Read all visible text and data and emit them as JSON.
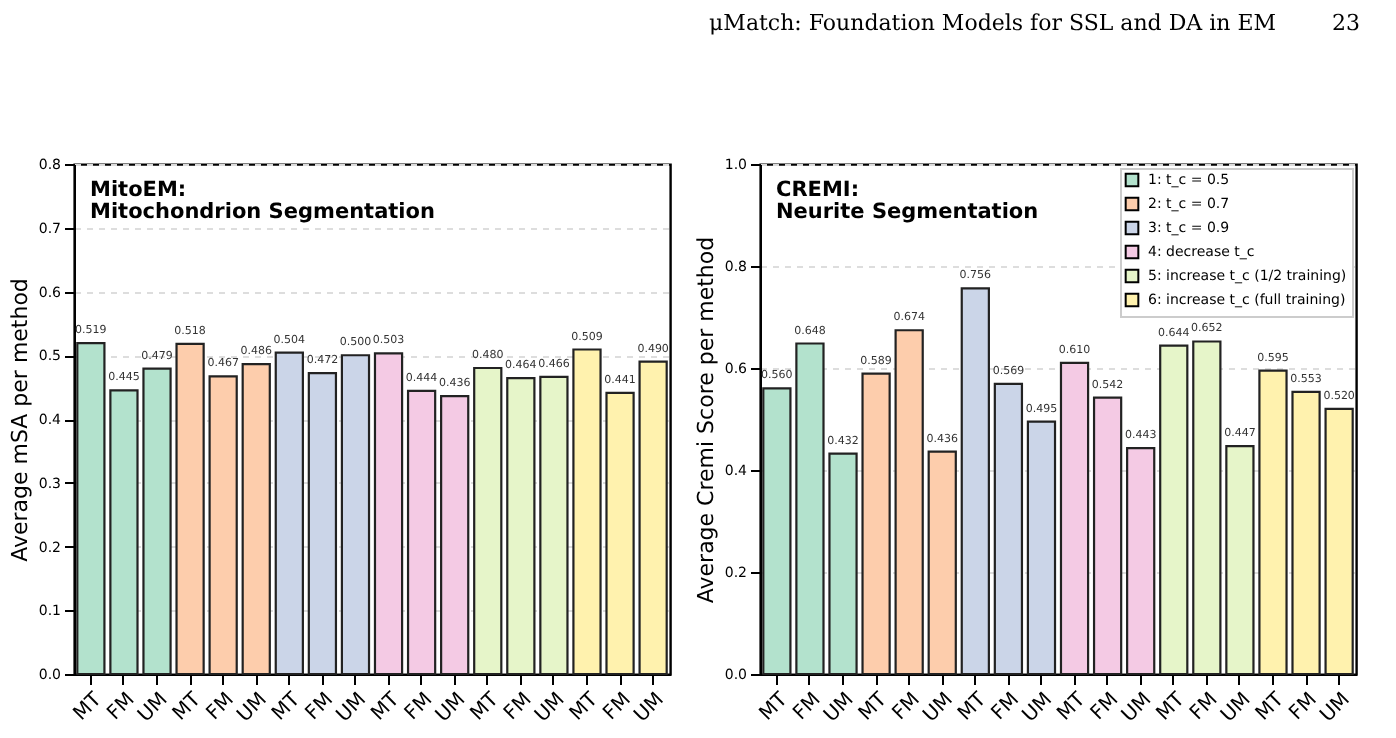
{
  "chart_data": [
    {
      "type": "bar",
      "title": "MitoEM:\nMitochondrion Segmentation",
      "ylabel": "Average mSA per method",
      "categories": [
        "MT",
        "FM",
        "UM",
        "MT",
        "FM",
        "UM",
        "MT",
        "FM",
        "UM",
        "MT",
        "FM",
        "UM",
        "MT",
        "FM",
        "UM",
        "MT",
        "FM",
        "UM"
      ],
      "series": [
        {
          "color": "#b3e2cd",
          "values": [
            0.519,
            0.445,
            0.479,
            null,
            null,
            null,
            null,
            null,
            null,
            null,
            null,
            null,
            null,
            null,
            null,
            null,
            null,
            null
          ],
          "value_labels": [
            "0.519",
            "0.445",
            "0.479",
            null,
            null,
            null,
            null,
            null,
            null,
            null,
            null,
            null,
            null,
            null,
            null,
            null,
            null,
            null
          ]
        },
        {
          "color": "#fdcdac",
          "values": [
            null,
            null,
            null,
            0.518,
            0.467,
            0.486,
            null,
            null,
            null,
            null,
            null,
            null,
            null,
            null,
            null,
            null,
            null,
            null
          ],
          "value_labels": [
            null,
            null,
            null,
            "0.518",
            "0.467",
            "0.486",
            null,
            null,
            null,
            null,
            null,
            null,
            null,
            null,
            null,
            null,
            null,
            null
          ]
        },
        {
          "color": "#cbd5e8",
          "values": [
            null,
            null,
            null,
            null,
            null,
            null,
            0.504,
            0.472,
            0.5,
            null,
            null,
            null,
            null,
            null,
            null,
            null,
            null,
            null
          ],
          "value_labels": [
            null,
            null,
            null,
            null,
            null,
            null,
            "0.504",
            "0.472",
            "0.500",
            null,
            null,
            null,
            null,
            null,
            null,
            null,
            null,
            null
          ]
        },
        {
          "color": "#f4cae4",
          "values": [
            null,
            null,
            null,
            null,
            null,
            null,
            null,
            null,
            null,
            0.503,
            0.444,
            0.436,
            null,
            null,
            null,
            null,
            null,
            null
          ],
          "value_labels": [
            null,
            null,
            null,
            null,
            null,
            null,
            null,
            null,
            null,
            "0.503",
            "0.444",
            "0.436",
            null,
            null,
            null,
            null,
            null,
            null
          ]
        },
        {
          "color": "#e6f5c9",
          "values": [
            null,
            null,
            null,
            null,
            null,
            null,
            null,
            null,
            null,
            null,
            null,
            null,
            0.48,
            0.464,
            0.466,
            null,
            null,
            null
          ],
          "value_labels": [
            null,
            null,
            null,
            null,
            null,
            null,
            null,
            null,
            null,
            null,
            null,
            null,
            "0.480",
            "0.464",
            "0.466",
            null,
            null,
            null
          ]
        },
        {
          "color": "#fff2ae",
          "values": [
            null,
            null,
            null,
            null,
            null,
            null,
            null,
            null,
            null,
            null,
            null,
            null,
            null,
            null,
            null,
            0.509,
            0.441,
            0.49
          ],
          "value_labels": [
            null,
            null,
            null,
            null,
            null,
            null,
            null,
            null,
            null,
            null,
            null,
            null,
            null,
            null,
            null,
            "0.509",
            "0.441",
            "0.490"
          ]
        }
      ],
      "ylim": [
        0,
        0.8
      ],
      "yticks": [
        {
          "value": 0,
          "label": "0.0"
        },
        0.1,
        0.2,
        0.3,
        0.4,
        0.5,
        0.6,
        0.7,
        0.8
      ],
      "grid": "y"
    },
    {
      "type": "bar",
      "title": "CREMI:\nNeurite Segmentation",
      "ylabel": "Average Cremi Score per method",
      "annotations": [
        "μMatch: Foundation Models for SSL and DA in EM",
        "23"
      ],
      "categories": [
        "MT",
        "FM",
        "UM",
        "MT",
        "FM",
        "UM",
        "MT",
        "FM",
        "UM",
        "MT",
        "FM",
        "UM",
        "MT",
        "FM",
        "UM",
        "MT",
        "FM",
        "UM"
      ],
      "series": [
        {
          "name": "1: t_c = 0.5",
          "color": "#b3e2cd",
          "values": [
            0.56,
            0.648,
            0.432,
            null,
            null,
            null,
            null,
            null,
            null,
            null,
            null,
            null,
            null,
            null,
            null,
            null,
            null,
            null
          ],
          "value_labels": [
            "0.560",
            "0.648",
            "0.432",
            null,
            null,
            null,
            null,
            null,
            null,
            null,
            null,
            null,
            null,
            null,
            null,
            null,
            null,
            null
          ]
        },
        {
          "name": "2: t_c = 0.7",
          "color": "#fdcdac",
          "values": [
            null,
            null,
            null,
            0.589,
            0.674,
            0.436,
            null,
            null,
            null,
            null,
            null,
            null,
            null,
            null,
            null,
            null,
            null,
            null
          ],
          "value_labels": [
            null,
            null,
            null,
            "0.589",
            "0.674",
            "0.436",
            null,
            null,
            null,
            null,
            null,
            null,
            null,
            null,
            null,
            null,
            null,
            null
          ]
        },
        {
          "name": "3: t_c = 0.9",
          "color": "#cbd5e8",
          "values": [
            null,
            null,
            null,
            null,
            null,
            null,
            0.756,
            0.569,
            0.495,
            null,
            null,
            null,
            null,
            null,
            null,
            null,
            null,
            null
          ],
          "value_labels": [
            null,
            null,
            null,
            null,
            null,
            null,
            "0.756",
            "0.569",
            "0.495",
            null,
            null,
            null,
            null,
            null,
            null,
            null,
            null,
            null
          ]
        },
        {
          "name": "4: decrease t_c",
          "color": "#f4cae4",
          "values": [
            null,
            null,
            null,
            null,
            null,
            null,
            null,
            null,
            null,
            0.61,
            0.542,
            0.443,
            null,
            null,
            null,
            null,
            null,
            null
          ],
          "value_labels": [
            null,
            null,
            null,
            null,
            null,
            null,
            null,
            null,
            null,
            "0.610",
            "0.542",
            "0.443",
            null,
            null,
            null,
            null,
            null,
            null
          ]
        },
        {
          "name": "5: increase t_c (1/2 training)",
          "color": "#e6f5c9",
          "values": [
            null,
            null,
            null,
            null,
            null,
            null,
            null,
            null,
            null,
            null,
            null,
            null,
            0.644,
            0.652,
            0.447,
            null,
            null,
            null
          ],
          "value_labels": [
            null,
            null,
            null,
            null,
            null,
            null,
            null,
            null,
            null,
            null,
            null,
            null,
            "0.644",
            "0.652",
            "0.447",
            null,
            null,
            null
          ]
        },
        {
          "name": "6: increase t_c (full training)",
          "color": "#fff2ae",
          "values": [
            null,
            null,
            null,
            null,
            null,
            null,
            null,
            null,
            null,
            null,
            null,
            null,
            null,
            null,
            null,
            0.595,
            0.553,
            0.52
          ],
          "value_labels": [
            null,
            null,
            null,
            null,
            null,
            null,
            null,
            null,
            null,
            null,
            null,
            null,
            null,
            null,
            null,
            "0.595",
            "0.553",
            "0.520"
          ]
        }
      ],
      "ylim": [
        0,
        1
      ],
      "yticks": [
        {
          "value": 0,
          "label": "0.0"
        },
        0.2,
        0.4,
        0.6,
        0.8,
        {
          "value": 1,
          "label": "1.0"
        }
      ],
      "grid": "y",
      "legend": "top right"
    }
  ]
}
